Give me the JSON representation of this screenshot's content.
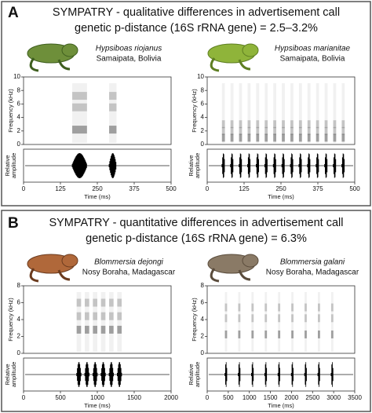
{
  "panels": [
    {
      "letter": "A",
      "title": [
        "SYMPATRY - qualitative differences in advertisement call",
        "genetic p-distance (16S rRNA gene) = 2.5–3.2%"
      ],
      "species": [
        {
          "name": "Hypsiboas riojanus",
          "locality": "Samaipata, Bolivia",
          "y_label": "Frequency (kHz)",
          "y_ticks": [
            0,
            2,
            4,
            6,
            8,
            10
          ],
          "amp_label": [
            "Relative",
            "amplitude"
          ],
          "x_ticks": [
            0,
            125,
            250,
            375,
            500
          ],
          "x_label": "Time (ms)"
        },
        {
          "name": "Hypsiboas marianitae",
          "locality": "Samaipata, Bolivia",
          "y_label": "Frequency (kHz)",
          "y_ticks": [
            0,
            2,
            4,
            6,
            8,
            10
          ],
          "amp_label": [
            "Relative",
            "amplitude"
          ],
          "x_ticks": [
            0,
            125,
            250,
            375,
            500
          ],
          "x_label": "Time (ms)"
        }
      ]
    },
    {
      "letter": "B",
      "title": [
        "SYMPATRY - quantitative differences in advertisement call",
        "genetic p-distance (16S rRNA gene) = 6.3%"
      ],
      "species": [
        {
          "name": "Blommersia dejongi",
          "locality": "Nosy Boraha, Madagascar",
          "y_label": "Frequency (kHz)",
          "y_ticks": [
            0,
            2,
            4,
            6,
            8
          ],
          "amp_label": [
            "Relative",
            "amplitude"
          ],
          "x_ticks": [
            0,
            500,
            1000,
            1500,
            2000
          ],
          "x_label": "Time (ms)"
        },
        {
          "name": "Blommersia galani",
          "locality": "Nosy Boraha, Madagascar",
          "y_label": "Frequency (kHz)",
          "y_ticks": [
            0,
            2,
            4,
            6,
            8
          ],
          "amp_label": [
            "Relative",
            "amplitude"
          ],
          "x_ticks": [
            0,
            500,
            1000,
            1500,
            2000,
            2500,
            3000,
            3500
          ],
          "x_label": "Time (ms)"
        }
      ]
    }
  ]
}
